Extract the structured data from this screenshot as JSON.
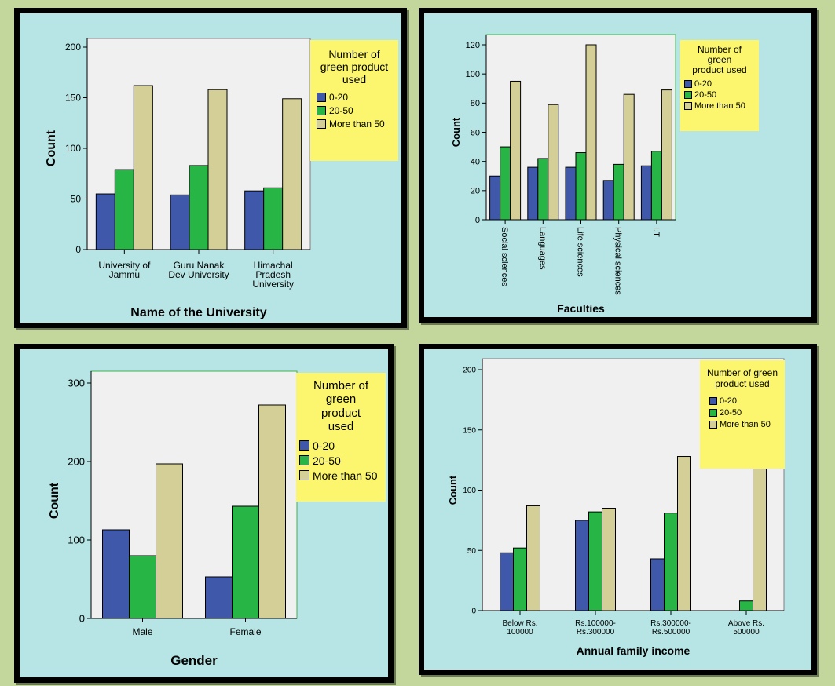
{
  "colors": {
    "c0_20": "#3f58a9",
    "c20_50": "#27b546",
    "c50plus": "#d3cf97",
    "legend_bg": "#fbf66e",
    "panel_bg": "#b7e4e4",
    "plot_bg": "#f0f0f0"
  },
  "chart_data": [
    {
      "type": "bar",
      "xlabel": "Name of the University",
      "ylabel": "Count",
      "ylim": [
        0,
        200
      ],
      "yticks": [
        "0",
        "50",
        "100",
        "150",
        "200"
      ],
      "categories": [
        "University of Jammu",
        "Guru Nanak Dev University",
        "Himachal Pradesh University"
      ],
      "category_lines": [
        [
          "University of",
          "Jammu"
        ],
        [
          "Guru Nanak",
          "Dev University"
        ],
        [
          "Himachal",
          "Pradesh",
          "University"
        ]
      ],
      "legend_title": [
        "Number of",
        "green product",
        "used"
      ],
      "series": [
        {
          "name": "0-20",
          "values": [
            55,
            54,
            58
          ]
        },
        {
          "name": "20-50",
          "values": [
            79,
            83,
            61
          ]
        },
        {
          "name": "More than 50",
          "values": [
            162,
            158,
            149
          ]
        }
      ],
      "grid": false,
      "legend_position": "top-right"
    },
    {
      "type": "bar",
      "xlabel": "Faculties",
      "ylabel": "Count",
      "ylim": [
        0,
        120
      ],
      "yticks": [
        "0",
        "20",
        "40",
        "60",
        "80",
        "100",
        "120"
      ],
      "categories": [
        "Social sciences",
        "Languages",
        "Life sciences",
        "Physical sciences",
        "I.T"
      ],
      "legend_title": [
        "Number of",
        "green",
        "product used"
      ],
      "series": [
        {
          "name": "0-20",
          "values": [
            30,
            36,
            36,
            27,
            37
          ]
        },
        {
          "name": "20-50",
          "values": [
            50,
            42,
            46,
            38,
            47
          ]
        },
        {
          "name": "More than 50",
          "values": [
            95,
            79,
            120,
            86,
            89
          ]
        }
      ],
      "grid": false,
      "legend_position": "top-right"
    },
    {
      "type": "bar",
      "xlabel": "Gender",
      "ylabel": "Count",
      "ylim": [
        0,
        300
      ],
      "yticks": [
        "0",
        "100",
        "200",
        "300"
      ],
      "categories": [
        "Male",
        "Female"
      ],
      "legend_title": [
        "Number of",
        "green",
        "product",
        "used"
      ],
      "series": [
        {
          "name": "0-20",
          "values": [
            113,
            53
          ]
        },
        {
          "name": "20-50",
          "values": [
            80,
            143
          ]
        },
        {
          "name": "More than 50",
          "values": [
            197,
            272
          ]
        }
      ],
      "grid": false,
      "legend_position": "top-right"
    },
    {
      "type": "bar",
      "xlabel": "Annual family income",
      "ylabel": "Count",
      "ylim": [
        0,
        200
      ],
      "yticks": [
        "0",
        "50",
        "100",
        "150",
        "200"
      ],
      "categories": [
        "Below Rs. 100000",
        "Rs.100000-Rs.300000",
        "Rs.300000-Rs.500000",
        "Above Rs. 500000"
      ],
      "category_lines": [
        [
          "Below Rs.",
          "100000"
        ],
        [
          "Rs.100000-",
          "Rs.300000"
        ],
        [
          "Rs.300000-",
          "Rs.500000"
        ],
        [
          "Above Rs.",
          "500000"
        ]
      ],
      "legend_title": [
        "Number of green",
        "product used"
      ],
      "series": [
        {
          "name": "0-20",
          "values": [
            48,
            75,
            43,
            null
          ]
        },
        {
          "name": "20-50",
          "values": [
            52,
            82,
            81,
            8
          ]
        },
        {
          "name": "More than 50",
          "values": [
            87,
            85,
            128,
            169
          ]
        }
      ],
      "grid": false,
      "legend_position": "top-right"
    }
  ]
}
